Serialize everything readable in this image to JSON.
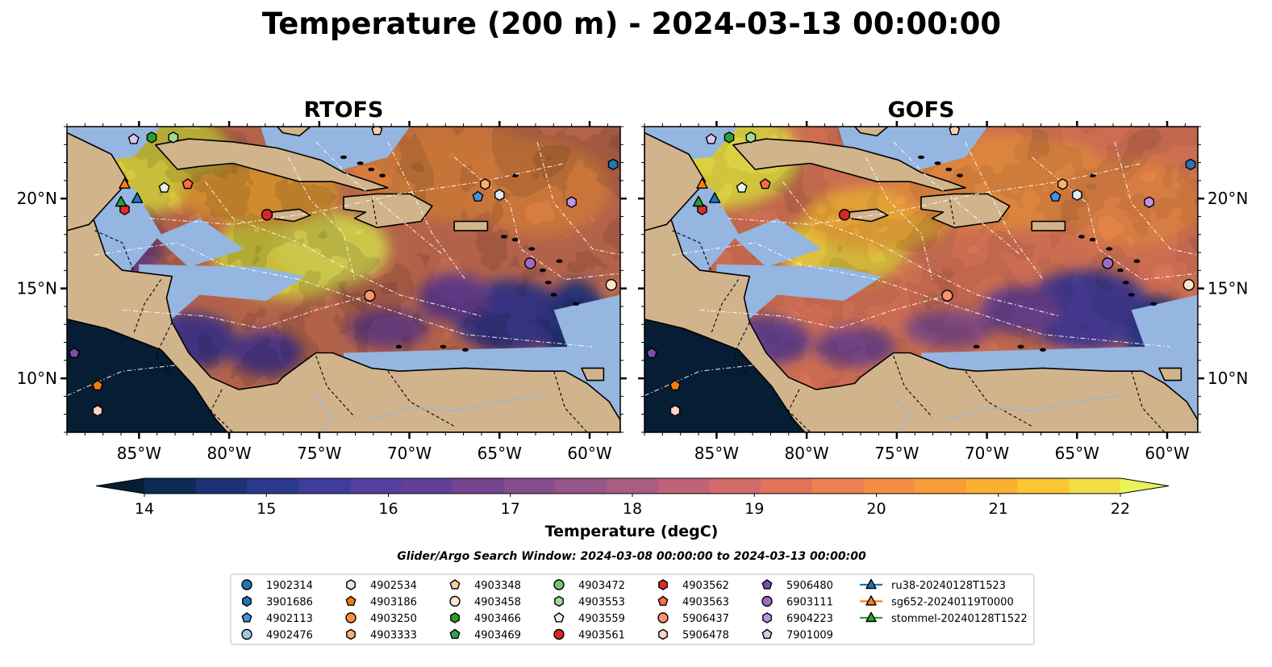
{
  "title": "Temperature (200 m) - 2024-03-13 00:00:00",
  "panels": [
    {
      "name": "RTOFS",
      "variant": "rtofs"
    },
    {
      "name": "GOFS",
      "variant": "gofs"
    }
  ],
  "map_axes": {
    "lon_ticks": [
      -85,
      -80,
      -75,
      -70,
      -65,
      -60
    ],
    "lon_labels": [
      "85°W",
      "80°W",
      "75°W",
      "70°W",
      "65°W",
      "60°W"
    ],
    "lat_ticks": [
      10,
      15,
      20
    ],
    "lat_labels": [
      "10°N",
      "15°N",
      "20°N"
    ],
    "lon_range": [
      -89,
      -58.3
    ],
    "lat_range": [
      7,
      24
    ]
  },
  "colorbar": {
    "label": "Temperature (degC)",
    "min": 14,
    "max": 22,
    "step": 0.5,
    "ticks": [
      "14",
      "15",
      "16",
      "17",
      "18",
      "19",
      "20",
      "21",
      "22"
    ],
    "colors": [
      "#061d33",
      "#0d2a56",
      "#1b3374",
      "#2b3a8e",
      "#3e3d9c",
      "#523f9f",
      "#643f98",
      "#744490",
      "#854e8b",
      "#985589",
      "#ab5c82",
      "#c06377",
      "#d26a6a",
      "#e0745b",
      "#eb8150",
      "#f38f43",
      "#f89e39",
      "#fcb030",
      "#fbc62f",
      "#f1de43",
      "#e9f45c"
    ]
  },
  "search_window": "Glider/Argo Search Window: 2024-03-08 00:00:00 to 2024-03-13 00:00:00",
  "legend": {
    "columns": [
      [
        {
          "label": "1902314",
          "marker": "circle",
          "color": "#1f77b4"
        },
        {
          "label": "3901686",
          "marker": "hexagon",
          "color": "#1f77b4"
        },
        {
          "label": "4902113",
          "marker": "pentagon",
          "color": "#4a90d9"
        },
        {
          "label": "4902476",
          "marker": "circle",
          "color": "#9ecae1"
        }
      ],
      [
        {
          "label": "4902534",
          "marker": "hexagon",
          "color": "#deebf7"
        },
        {
          "label": "4903186",
          "marker": "pentagon",
          "color": "#f07d0e"
        },
        {
          "label": "4903250",
          "marker": "circle",
          "color": "#fd8d3c"
        },
        {
          "label": "4903333",
          "marker": "hexagon",
          "color": "#fdae6b"
        }
      ],
      [
        {
          "label": "4903348",
          "marker": "pentagon",
          "color": "#fdd0a2"
        },
        {
          "label": "4903458",
          "marker": "circle",
          "color": "#fee6ce"
        },
        {
          "label": "4903466",
          "marker": "hexagon",
          "color": "#2ca02c"
        },
        {
          "label": "4903469",
          "marker": "pentagon",
          "color": "#31a354"
        }
      ],
      [
        {
          "label": "4903472",
          "marker": "circle",
          "color": "#74c476"
        },
        {
          "label": "4903553",
          "marker": "hexagon",
          "color": "#a1d99b"
        },
        {
          "label": "4903559",
          "marker": "pentagon",
          "color": "#e5f5e0"
        },
        {
          "label": "4903561",
          "marker": "circle",
          "color": "#d62728"
        }
      ],
      [
        {
          "label": "4903562",
          "marker": "hexagon",
          "color": "#de2d26"
        },
        {
          "label": "4903563",
          "marker": "pentagon",
          "color": "#fb6a4a"
        },
        {
          "label": "5906437",
          "marker": "circle",
          "color": "#fc9272"
        },
        {
          "label": "5906478",
          "marker": "hexagon",
          "color": "#fcd1c4"
        }
      ],
      [
        {
          "label": "5906480",
          "marker": "pentagon",
          "color": "#7b4fa8"
        },
        {
          "label": "6903111",
          "marker": "circle",
          "color": "#9e6bc7"
        },
        {
          "label": "6904223",
          "marker": "hexagon",
          "color": "#bc95e0"
        },
        {
          "label": "7901009",
          "marker": "pentagon",
          "color": "#dcc3f2"
        }
      ],
      [
        {
          "label": "ru38-20240128T1523",
          "marker": "triangle",
          "color": "#1f77b4"
        },
        {
          "label": "sg652-20240119T0000",
          "marker": "triangle",
          "color": "#ff7f0e"
        },
        {
          "label": "stommel-20240128T1522",
          "marker": "triangle",
          "color": "#2ca02c"
        }
      ]
    ]
  },
  "markers": [
    {
      "label": "7901009",
      "lon": -85.3,
      "lat": 23.3,
      "marker": "pentagon",
      "color": "#dcc3f2"
    },
    {
      "label": "4903466",
      "lon": -84.3,
      "lat": 23.4,
      "marker": "hexagon",
      "color": "#2ca02c"
    },
    {
      "label": "4903553",
      "lon": -83.1,
      "lat": 23.4,
      "marker": "hexagon",
      "color": "#a1d99b"
    },
    {
      "label": "4903348",
      "lon": -71.8,
      "lat": 23.8,
      "marker": "pentagon",
      "color": "#fdd0a2"
    },
    {
      "label": "3901686",
      "lon": -58.7,
      "lat": 21.9,
      "marker": "hexagon",
      "color": "#1f77b4"
    },
    {
      "label": "4903559",
      "lon": -83.6,
      "lat": 20.6,
      "marker": "pentagon",
      "color": "#e5f5e0"
    },
    {
      "label": "4903563",
      "lon": -82.3,
      "lat": 20.8,
      "marker": "pentagon",
      "color": "#fb6a4a"
    },
    {
      "label": "4903561",
      "lon": -77.9,
      "lat": 19.1,
      "marker": "circle",
      "color": "#d62728"
    },
    {
      "label": "4903562",
      "lon": -85.8,
      "lat": 19.4,
      "marker": "hexagon",
      "color": "#de2d26"
    },
    {
      "label": "4903333",
      "lon": -65.8,
      "lat": 20.8,
      "marker": "hexagon",
      "color": "#fdae6b"
    },
    {
      "label": "4902113",
      "lon": -66.2,
      "lat": 20.1,
      "marker": "pentagon",
      "color": "#4a90d9"
    },
    {
      "label": "4902534",
      "lon": -65.0,
      "lat": 20.2,
      "marker": "hexagon",
      "color": "#deebf7"
    },
    {
      "label": "6904223",
      "lon": -61.0,
      "lat": 19.8,
      "marker": "hexagon",
      "color": "#bc95e0"
    },
    {
      "label": "6903111",
      "lon": -63.3,
      "lat": 16.4,
      "marker": "circle",
      "color": "#9e6bc7"
    },
    {
      "label": "4903458",
      "lon": -58.8,
      "lat": 15.2,
      "marker": "circle",
      "color": "#fee6ce"
    },
    {
      "label": "5906437",
      "lon": -72.2,
      "lat": 14.6,
      "marker": "circle",
      "color": "#fc9272"
    },
    {
      "label": "5906480",
      "lon": -88.6,
      "lat": 11.4,
      "marker": "pentagon",
      "color": "#7b4fa8"
    },
    {
      "label": "4903186",
      "lon": -87.3,
      "lat": 9.6,
      "marker": "pentagon",
      "color": "#f07d0e"
    },
    {
      "label": "5906478",
      "lon": -87.3,
      "lat": 8.2,
      "marker": "hexagon",
      "color": "#fcd1c4"
    },
    {
      "label": "sg652-20240119T0000",
      "lon": -85.8,
      "lat": 20.8,
      "marker": "triangle",
      "color": "#ff7f0e"
    },
    {
      "label": "ru38-20240128T1523",
      "lon": -85.1,
      "lat": 20.0,
      "marker": "triangle",
      "color": "#1f77b4"
    },
    {
      "label": "stommel-20240128T1522",
      "lon": -86.0,
      "lat": 19.8,
      "marker": "triangle",
      "color": "#2ca02c"
    }
  ]
}
